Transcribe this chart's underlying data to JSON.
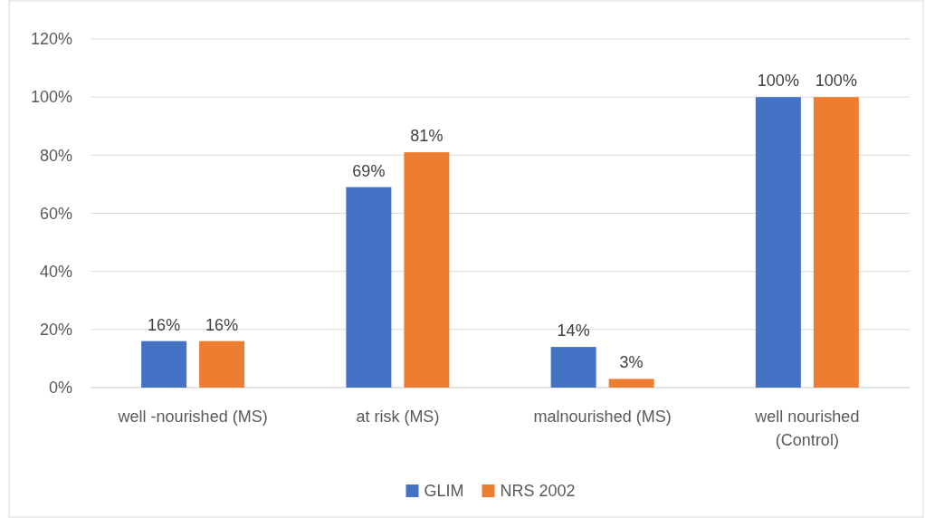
{
  "chart_data": {
    "type": "bar",
    "categories": [
      "well -nourished (MS)",
      "at risk (MS)",
      "malnourished (MS)",
      "well nourished (Control)"
    ],
    "series": [
      {
        "name": "GLIM",
        "color": "#4472c4",
        "values": [
          16,
          69,
          14,
          100
        ],
        "value_labels": [
          "16%",
          "69%",
          "14%",
          "100%"
        ]
      },
      {
        "name": "NRS 2002",
        "color": "#ed7d31",
        "values": [
          16,
          81,
          3,
          100
        ],
        "value_labels": [
          "16%",
          "81%",
          "3%",
          "100%"
        ]
      }
    ],
    "ylim": [
      0,
      120
    ],
    "yticks": [
      {
        "value": 0,
        "label": "0%"
      },
      {
        "value": 20,
        "label": "20%"
      },
      {
        "value": 40,
        "label": "40%"
      },
      {
        "value": 60,
        "label": "60%"
      },
      {
        "value": 80,
        "label": "80%"
      },
      {
        "value": 100,
        "label": "100%"
      },
      {
        "value": 120,
        "label": "120%"
      }
    ],
    "grid": "y",
    "legend": "bottom"
  }
}
